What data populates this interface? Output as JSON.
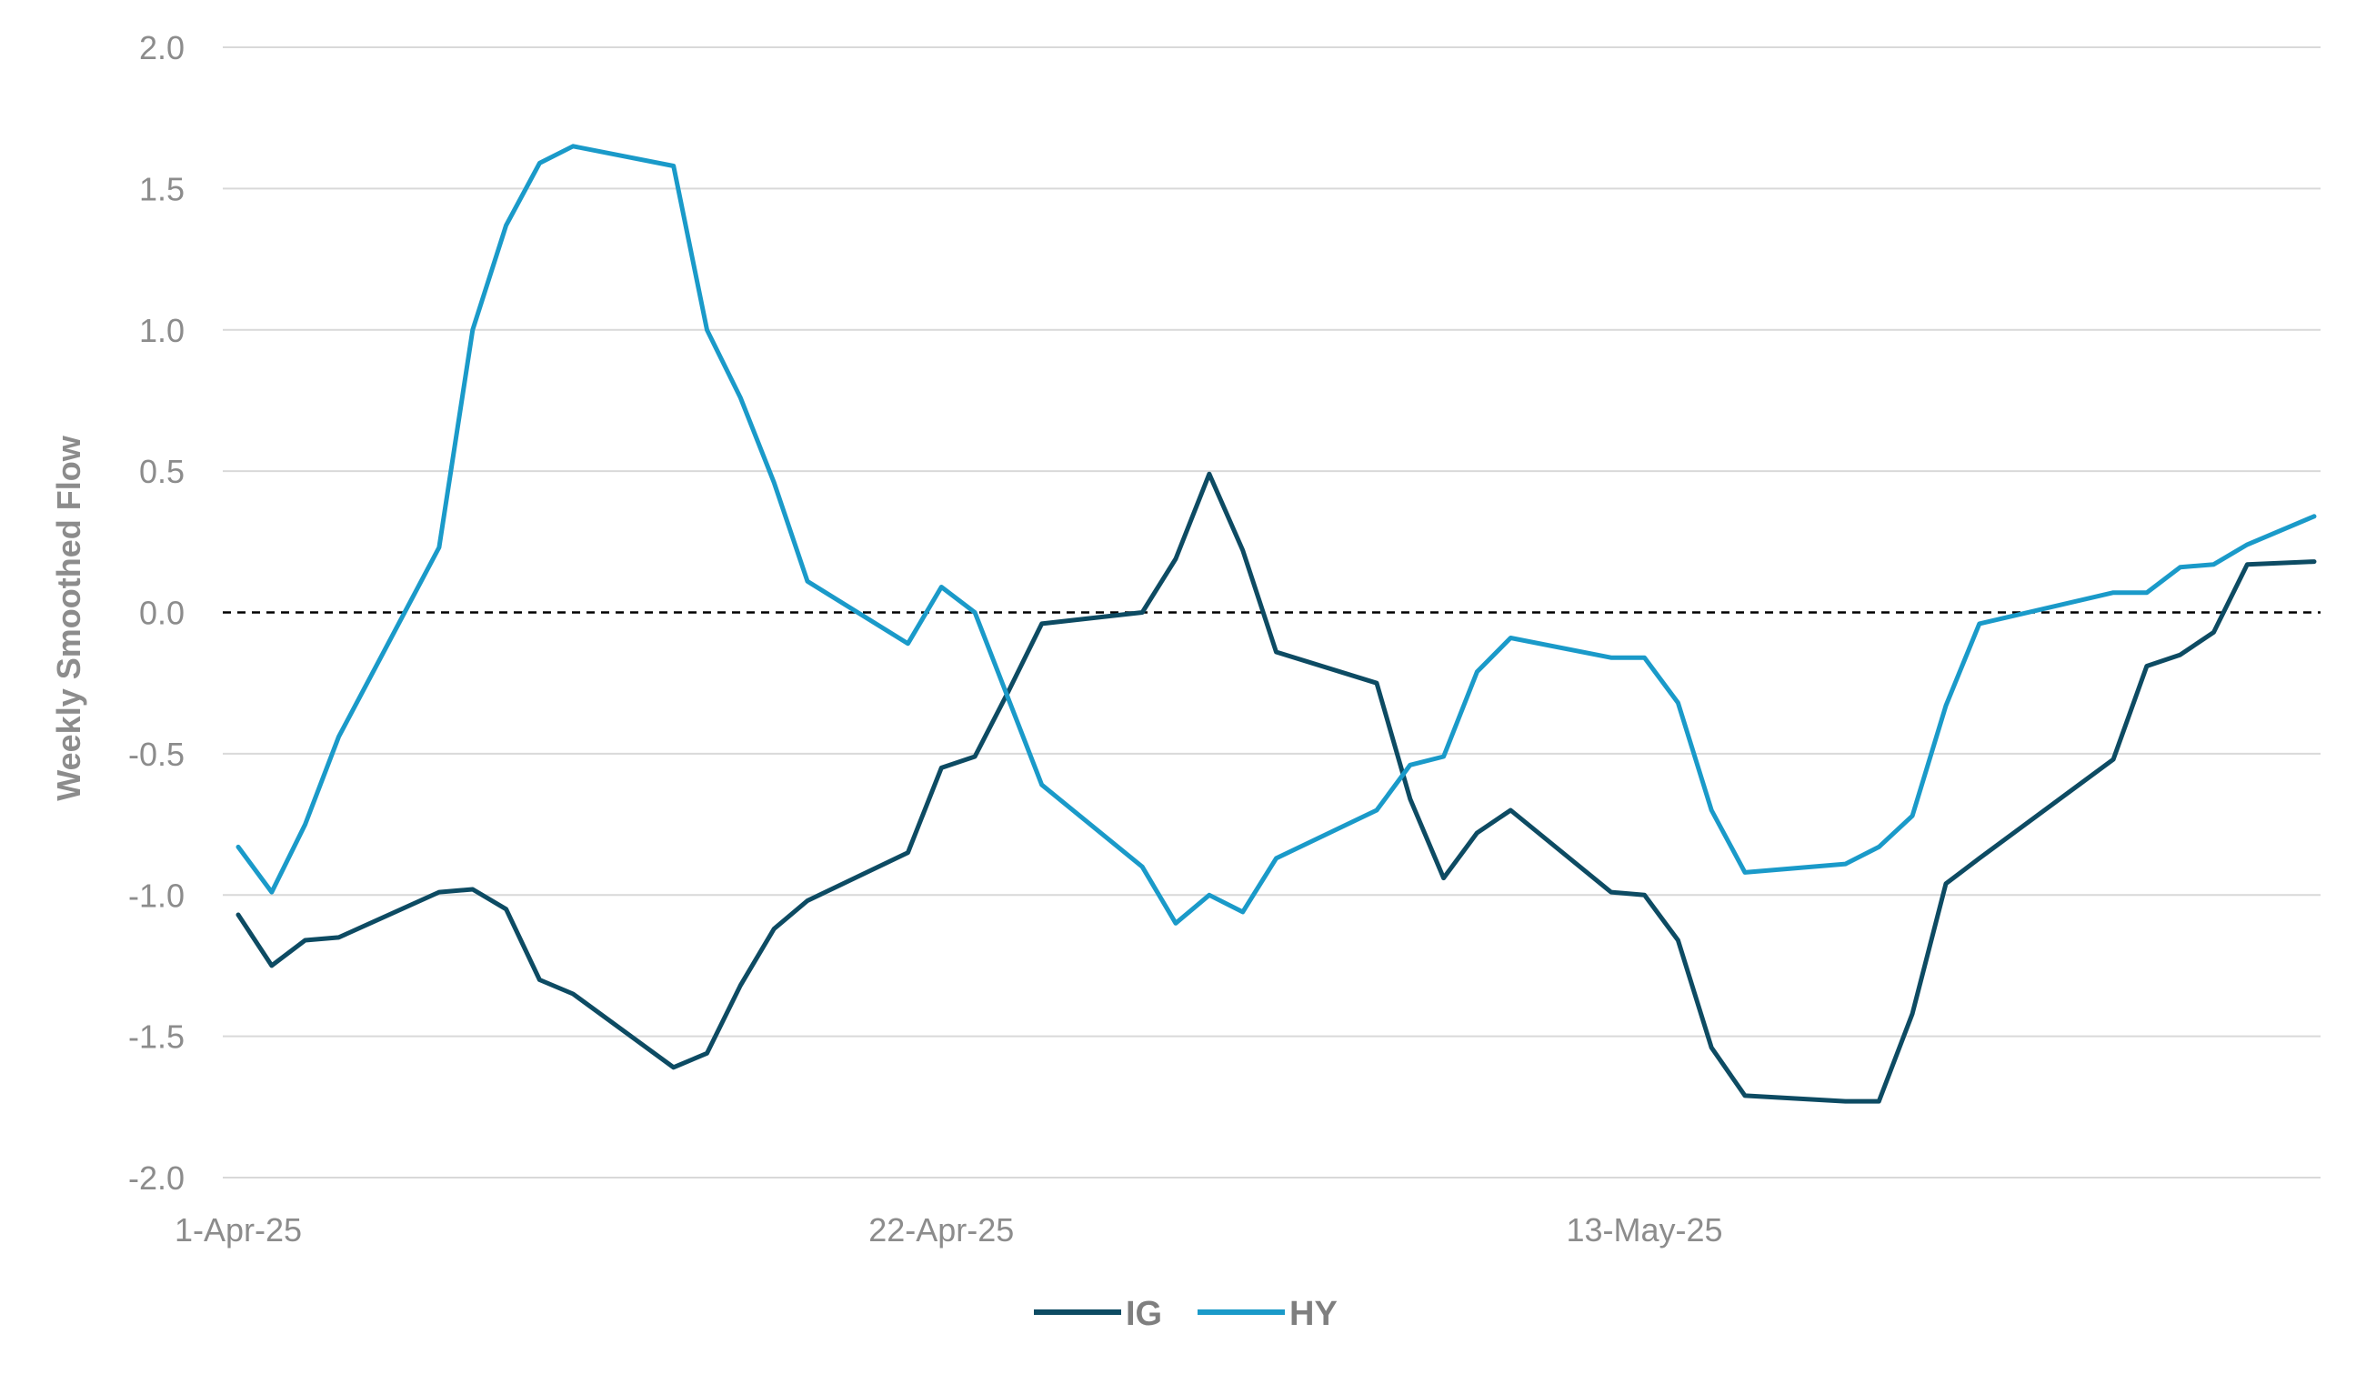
{
  "chart_data": {
    "type": "line",
    "ylabel": "Weekly Smoothed Flow",
    "xlabel": "",
    "ylim": [
      -2.0,
      2.0
    ],
    "yticks": [
      -2.0,
      -1.5,
      -1.0,
      -0.5,
      0.0,
      0.5,
      1.0,
      1.5,
      2.0
    ],
    "ytick_labels": [
      "-2.0",
      "-1.5",
      "-1.0",
      "-0.5",
      "0.0",
      "0.5",
      "1.0",
      "1.5",
      "2.0"
    ],
    "xlim": [
      "2025-04-01",
      "2025-06-02"
    ],
    "xticks": [
      "2025-04-01",
      "2025-04-22",
      "2025-05-13"
    ],
    "xtick_labels": [
      "1-Apr-25",
      "22-Apr-25",
      "13-May-25"
    ],
    "grid": "horizontal",
    "reference_line": {
      "y": 0.0,
      "style": "dashed",
      "color": "#000000"
    },
    "legend": "bottom-center",
    "series": [
      {
        "name": "IG",
        "color": "#0d4b63",
        "points": [
          [
            "2025-04-01",
            -1.07
          ],
          [
            "2025-04-02",
            -1.25
          ],
          [
            "2025-04-03",
            -1.16
          ],
          [
            "2025-04-04",
            -1.15
          ],
          [
            "2025-04-07",
            -0.99
          ],
          [
            "2025-04-08",
            -0.98
          ],
          [
            "2025-04-09",
            -1.05
          ],
          [
            "2025-04-10",
            -1.3
          ],
          [
            "2025-04-11",
            -1.35
          ],
          [
            "2025-04-14",
            -1.61
          ],
          [
            "2025-04-15",
            -1.56
          ],
          [
            "2025-04-16",
            -1.32
          ],
          [
            "2025-04-17",
            -1.12
          ],
          [
            "2025-04-18",
            -1.02
          ],
          [
            "2025-04-21",
            -0.85
          ],
          [
            "2025-04-22",
            -0.55
          ],
          [
            "2025-04-23",
            -0.51
          ],
          [
            "2025-04-24",
            -0.28
          ],
          [
            "2025-04-25",
            -0.04
          ],
          [
            "2025-04-28",
            0.0
          ],
          [
            "2025-04-29",
            0.19
          ],
          [
            "2025-04-30",
            0.49
          ],
          [
            "2025-05-01",
            0.22
          ],
          [
            "2025-05-02",
            -0.14
          ],
          [
            "2025-05-05",
            -0.25
          ],
          [
            "2025-05-06",
            -0.66
          ],
          [
            "2025-05-07",
            -0.94
          ],
          [
            "2025-05-08",
            -0.78
          ],
          [
            "2025-05-09",
            -0.7
          ],
          [
            "2025-05-12",
            -0.99
          ],
          [
            "2025-05-13",
            -1.0
          ],
          [
            "2025-05-14",
            -1.16
          ],
          [
            "2025-05-15",
            -1.54
          ],
          [
            "2025-05-16",
            -1.71
          ],
          [
            "2025-05-19",
            -1.73
          ],
          [
            "2025-05-20",
            -1.73
          ],
          [
            "2025-05-21",
            -1.42
          ],
          [
            "2025-05-22",
            -0.96
          ],
          [
            "2025-05-23",
            -0.87
          ],
          [
            "2025-05-27",
            -0.52
          ],
          [
            "2025-05-28",
            -0.19
          ],
          [
            "2025-05-29",
            -0.15
          ],
          [
            "2025-05-30",
            -0.07
          ],
          [
            "2025-05-31",
            0.17
          ],
          [
            "2025-06-02",
            0.18
          ]
        ]
      },
      {
        "name": "HY",
        "color": "#1a9ac9",
        "points": [
          [
            "2025-04-01",
            -0.83
          ],
          [
            "2025-04-02",
            -0.99
          ],
          [
            "2025-04-03",
            -0.75
          ],
          [
            "2025-04-04",
            -0.44
          ],
          [
            "2025-04-07",
            0.23
          ],
          [
            "2025-04-08",
            1.0
          ],
          [
            "2025-04-09",
            1.37
          ],
          [
            "2025-04-10",
            1.59
          ],
          [
            "2025-04-11",
            1.65
          ],
          [
            "2025-04-14",
            1.58
          ],
          [
            "2025-04-15",
            1.0
          ],
          [
            "2025-04-16",
            0.76
          ],
          [
            "2025-04-17",
            0.46
          ],
          [
            "2025-04-18",
            0.11
          ],
          [
            "2025-04-21",
            -0.11
          ],
          [
            "2025-04-22",
            0.09
          ],
          [
            "2025-04-23",
            0.0
          ],
          [
            "2025-04-25",
            -0.61
          ],
          [
            "2025-04-28",
            -0.9
          ],
          [
            "2025-04-29",
            -1.1
          ],
          [
            "2025-04-30",
            -1.0
          ],
          [
            "2025-05-01",
            -1.06
          ],
          [
            "2025-05-02",
            -0.87
          ],
          [
            "2025-05-05",
            -0.7
          ],
          [
            "2025-05-06",
            -0.54
          ],
          [
            "2025-05-07",
            -0.51
          ],
          [
            "2025-05-08",
            -0.21
          ],
          [
            "2025-05-09",
            -0.09
          ],
          [
            "2025-05-12",
            -0.16
          ],
          [
            "2025-05-13",
            -0.16
          ],
          [
            "2025-05-14",
            -0.32
          ],
          [
            "2025-05-15",
            -0.7
          ],
          [
            "2025-05-16",
            -0.92
          ],
          [
            "2025-05-19",
            -0.89
          ],
          [
            "2025-05-20",
            -0.83
          ],
          [
            "2025-05-21",
            -0.72
          ],
          [
            "2025-05-22",
            -0.33
          ],
          [
            "2025-05-23",
            -0.04
          ],
          [
            "2025-05-27",
            0.07
          ],
          [
            "2025-05-28",
            0.07
          ],
          [
            "2025-05-29",
            0.16
          ],
          [
            "2025-05-30",
            0.17
          ],
          [
            "2025-05-31",
            0.24
          ],
          [
            "2025-06-02",
            0.34
          ]
        ]
      }
    ]
  }
}
